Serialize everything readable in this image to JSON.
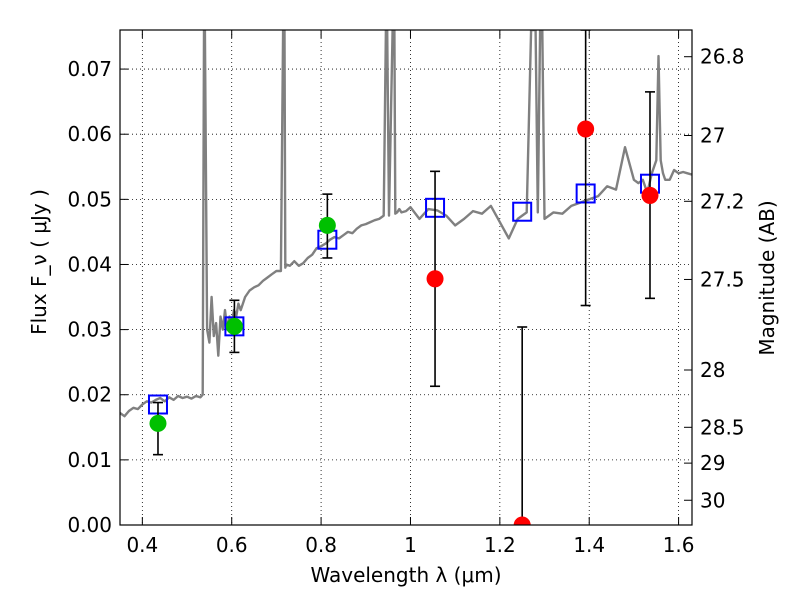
{
  "chart_data": {
    "type": "scatter",
    "xlabel": "Wavelength  λ (μm)",
    "ylabel": "Flux  F_ν ( μJy )",
    "y2label": "Magnitude (AB)",
    "xlim": [
      0.35,
      1.63
    ],
    "ylim": [
      0.0,
      0.076
    ],
    "x_ticks": [
      0.4,
      0.6,
      0.8,
      1.0,
      1.2,
      1.4,
      1.6
    ],
    "x_tick_labels": [
      "0.4",
      "0.6",
      "0.8",
      "1",
      "1.2",
      "1.4",
      "1.6"
    ],
    "y_ticks": [
      0.0,
      0.01,
      0.02,
      0.03,
      0.04,
      0.05,
      0.06,
      0.07
    ],
    "y_tick_labels": [
      "0.00",
      "0.01",
      "0.02",
      "0.03",
      "0.04",
      "0.05",
      "0.06",
      "0.07"
    ],
    "y2_ticks": [
      {
        "label": "26.8",
        "flux": 0.0719
      },
      {
        "label": "27",
        "flux": 0.0598
      },
      {
        "label": "27.2",
        "flux": 0.0497
      },
      {
        "label": "27.5",
        "flux": 0.0377
      },
      {
        "label": "28",
        "flux": 0.0238
      },
      {
        "label": "28.5",
        "flux": 0.015
      },
      {
        "label": "29",
        "flux": 0.0095
      },
      {
        "label": "30",
        "flux": 0.0038
      }
    ],
    "grid": true,
    "spectrum": {
      "color": "#808080",
      "x": [
        0.35,
        0.36,
        0.37,
        0.38,
        0.39,
        0.4,
        0.41,
        0.42,
        0.43,
        0.44,
        0.45,
        0.46,
        0.47,
        0.48,
        0.49,
        0.5,
        0.51,
        0.52,
        0.53,
        0.535,
        0.538,
        0.54,
        0.545,
        0.55,
        0.555,
        0.56,
        0.565,
        0.57,
        0.575,
        0.58,
        0.585,
        0.59,
        0.595,
        0.6,
        0.605,
        0.61,
        0.615,
        0.62,
        0.625,
        0.63,
        0.64,
        0.65,
        0.66,
        0.67,
        0.68,
        0.69,
        0.7,
        0.71,
        0.715,
        0.718,
        0.72,
        0.722,
        0.73,
        0.74,
        0.75,
        0.76,
        0.77,
        0.78,
        0.79,
        0.8,
        0.81,
        0.82,
        0.83,
        0.84,
        0.85,
        0.86,
        0.87,
        0.88,
        0.89,
        0.9,
        0.91,
        0.92,
        0.93,
        0.94,
        0.945,
        0.948,
        0.952,
        0.96,
        0.964,
        0.966,
        0.97,
        0.975,
        0.98,
        0.99,
        1.0,
        1.02,
        1.04,
        1.06,
        1.08,
        1.1,
        1.12,
        1.14,
        1.16,
        1.18,
        1.2,
        1.22,
        1.24,
        1.26,
        1.27,
        1.28,
        1.285,
        1.29,
        1.295,
        1.3,
        1.31,
        1.32,
        1.34,
        1.36,
        1.38,
        1.4,
        1.42,
        1.44,
        1.46,
        1.48,
        1.5,
        1.51,
        1.52,
        1.53,
        1.54,
        1.55,
        1.555,
        1.56,
        1.565,
        1.57,
        1.58,
        1.59,
        1.6,
        1.61,
        1.62,
        1.63
      ],
      "y": [
        0.0172,
        0.0167,
        0.0175,
        0.018,
        0.0178,
        0.0185,
        0.019,
        0.0188,
        0.0192,
        0.0195,
        0.019,
        0.0196,
        0.0192,
        0.0198,
        0.0195,
        0.0197,
        0.0194,
        0.0198,
        0.0196,
        0.02,
        0.076,
        0.076,
        0.03,
        0.028,
        0.035,
        0.029,
        0.031,
        0.026,
        0.032,
        0.03,
        0.033,
        0.03,
        0.032,
        0.031,
        0.033,
        0.032,
        0.034,
        0.033,
        0.034,
        0.035,
        0.036,
        0.0365,
        0.0368,
        0.0375,
        0.038,
        0.0385,
        0.039,
        0.039,
        0.076,
        0.076,
        0.0395,
        0.04,
        0.0398,
        0.0405,
        0.0398,
        0.0402,
        0.041,
        0.0415,
        0.0425,
        0.0428,
        0.0432,
        0.0438,
        0.0442,
        0.044,
        0.0445,
        0.045,
        0.0448,
        0.0455,
        0.046,
        0.0462,
        0.0465,
        0.0468,
        0.047,
        0.0475,
        0.076,
        0.076,
        0.0475,
        0.076,
        0.076,
        0.0478,
        0.048,
        0.0485,
        0.048,
        0.0482,
        0.0488,
        0.047,
        0.0485,
        0.0483,
        0.0475,
        0.046,
        0.047,
        0.0482,
        0.0478,
        0.049,
        0.0465,
        0.044,
        0.047,
        0.048,
        0.076,
        0.076,
        0.048,
        0.076,
        0.076,
        0.047,
        0.0475,
        0.048,
        0.0478,
        0.049,
        0.0495,
        0.05,
        0.0505,
        0.052,
        0.0515,
        0.058,
        0.053,
        0.0525,
        0.053,
        0.051,
        0.054,
        0.056,
        0.072,
        0.056,
        0.054,
        0.053,
        0.053,
        0.0545,
        0.054,
        0.0542,
        0.054,
        0.0538
      ]
    },
    "model_photometry": {
      "color": "#0000ff",
      "marker": "open-square",
      "points": [
        {
          "x": 0.435,
          "y": 0.0185
        },
        {
          "x": 0.606,
          "y": 0.0305
        },
        {
          "x": 0.814,
          "y": 0.0438
        },
        {
          "x": 1.055,
          "y": 0.0487
        },
        {
          "x": 1.25,
          "y": 0.0481
        },
        {
          "x": 1.392,
          "y": 0.0509
        },
        {
          "x": 1.536,
          "y": 0.0524
        }
      ]
    },
    "observed_photometry": [
      {
        "x": 0.435,
        "y": 0.0156,
        "yerr_low": 0.0108,
        "yerr_high": 0.0188,
        "color": "#00c000"
      },
      {
        "x": 0.606,
        "y": 0.0305,
        "yerr_low": 0.0265,
        "yerr_high": 0.0345,
        "color": "#00c000"
      },
      {
        "x": 0.814,
        "y": 0.046,
        "yerr_low": 0.041,
        "yerr_high": 0.0508,
        "color": "#00c000"
      },
      {
        "x": 1.055,
        "y": 0.0378,
        "yerr_low": 0.0213,
        "yerr_high": 0.0543,
        "color": "#ff0000"
      },
      {
        "x": 1.25,
        "y": 0.0,
        "yerr_low": 0.0,
        "yerr_high": 0.0304,
        "color": "#ff0000"
      },
      {
        "x": 1.392,
        "y": 0.0608,
        "yerr_low": 0.0337,
        "yerr_high": 0.076,
        "color": "#ff0000"
      },
      {
        "x": 1.536,
        "y": 0.0506,
        "yerr_low": 0.0348,
        "yerr_high": 0.0665,
        "color": "#ff0000"
      }
    ]
  }
}
